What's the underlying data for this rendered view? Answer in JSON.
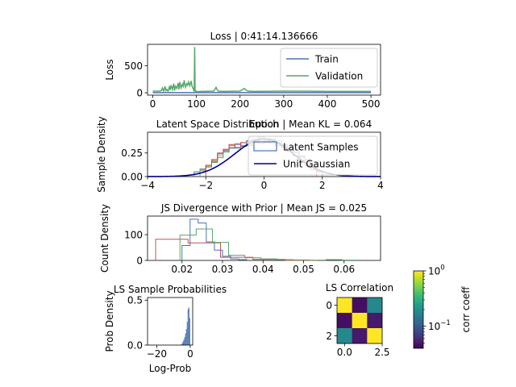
{
  "chart_data": [
    {
      "id": "loss",
      "type": "line",
      "title": "Loss | 0:41:14.136666",
      "xlabel": "Epoch",
      "ylabel": "Loss",
      "xlim": [
        -12,
        522
      ],
      "ylim": [
        -45,
        900
      ],
      "xticks": [
        "0",
        "100",
        "200",
        "300",
        "400",
        "500"
      ],
      "xtick_values": [
        0,
        100,
        200,
        300,
        400,
        500
      ],
      "yticks": [
        "0",
        "500"
      ],
      "ytick_values": [
        0,
        500
      ],
      "legend": {
        "placement": "upper-right"
      },
      "series": [
        {
          "name": "Train",
          "color": "#4c72b0",
          "x": [
            0,
            100,
            200,
            300,
            400,
            500
          ],
          "y": [
            2,
            2,
            2,
            2,
            2,
            2
          ]
        },
        {
          "name": "Validation",
          "color": "#55a868",
          "x": [
            0,
            15,
            20,
            22,
            25,
            28,
            30,
            32,
            35,
            38,
            40,
            42,
            45,
            48,
            50,
            52,
            55,
            58,
            60,
            62,
            65,
            68,
            70,
            72,
            75,
            78,
            80,
            82,
            85,
            88,
            90,
            93,
            94,
            95,
            96,
            97,
            98,
            99,
            100,
            110,
            140,
            145,
            148,
            150,
            160,
            200,
            210,
            215,
            220,
            230,
            300,
            400,
            500
          ],
          "y": [
            30,
            30,
            40,
            90,
            30,
            120,
            40,
            60,
            30,
            110,
            50,
            140,
            60,
            170,
            40,
            120,
            80,
            180,
            60,
            200,
            90,
            160,
            120,
            230,
            100,
            170,
            140,
            200,
            130,
            220,
            120,
            70,
            40,
            60,
            850,
            20,
            40,
            30,
            20,
            25,
            30,
            100,
            50,
            30,
            25,
            30,
            80,
            40,
            30,
            25,
            30,
            25,
            25
          ]
        }
      ]
    },
    {
      "id": "latent",
      "type": "line",
      "title": "Latent Space Distribution | Mean KL = 0.064",
      "xlabel": "",
      "ylabel": "Sample Density",
      "xlim": [
        -4,
        4
      ],
      "ylim": [
        0,
        0.47
      ],
      "xticks": [
        "−4",
        "−2",
        "0",
        "2",
        "4"
      ],
      "xtick_values": [
        -4,
        -2,
        0,
        2,
        4
      ],
      "yticks": [
        "0.00",
        "0.25"
      ],
      "ytick_values": [
        0,
        0.25
      ],
      "legend": {
        "placement": "upper-right"
      },
      "series": [
        {
          "name": "Latent Samples",
          "color": "#4c72b0",
          "type": "step",
          "edges": [
            -2.4,
            -2.2,
            -2.0,
            -1.8,
            -1.6,
            -1.4,
            -1.2,
            -1.0,
            -0.8,
            -0.6,
            -0.4,
            -0.2,
            0.0,
            0.2,
            0.4,
            0.6,
            0.8,
            1.0,
            1.2,
            1.4,
            1.6,
            1.8,
            2.0
          ],
          "values": [
            0.05,
            0.08,
            0.12,
            0.16,
            0.24,
            0.28,
            0.3,
            0.34,
            0.32,
            0.38,
            0.36,
            0.4,
            0.38,
            0.39,
            0.36,
            0.34,
            0.3,
            0.28,
            0.22,
            0.18,
            0.1,
            0.05
          ]
        },
        {
          "name": "",
          "color": "#dd8452",
          "type": "step",
          "edges": [
            -2.2,
            -2.0,
            -1.8,
            -1.6,
            -1.4,
            -1.2,
            -1.0,
            -0.8,
            -0.6,
            -0.4,
            -0.2,
            0.0,
            0.2,
            0.4,
            0.6,
            0.8,
            1.0,
            1.2,
            1.4,
            1.6,
            1.8
          ],
          "values": [
            0.07,
            0.11,
            0.17,
            0.22,
            0.27,
            0.31,
            0.35,
            0.33,
            0.37,
            0.4,
            0.38,
            0.36,
            0.4,
            0.35,
            0.32,
            0.29,
            0.25,
            0.2,
            0.15,
            0.09
          ]
        },
        {
          "name": "",
          "color": "#55a868",
          "type": "step",
          "edges": [
            -2.2,
            -2.0,
            -1.8,
            -1.6,
            -1.4,
            -1.2,
            -1.0,
            -0.8,
            -0.6,
            -0.4,
            -0.2,
            0.0,
            0.2,
            0.4,
            0.6,
            0.8,
            1.0,
            1.2,
            1.4,
            1.6,
            1.8,
            2.0
          ],
          "values": [
            0.06,
            0.1,
            0.15,
            0.2,
            0.26,
            0.33,
            0.3,
            0.36,
            0.34,
            0.39,
            0.42,
            0.37,
            0.35,
            0.38,
            0.33,
            0.3,
            0.26,
            0.21,
            0.16,
            0.11,
            0.06
          ]
        },
        {
          "name": "",
          "color": "#c44e52",
          "type": "step",
          "edges": [
            -2.0,
            -1.8,
            -1.6,
            -1.4,
            -1.2,
            -1.0,
            -0.8,
            -0.6,
            -0.4,
            -0.2,
            0.0,
            0.2,
            0.4,
            0.6,
            0.8,
            1.0,
            1.2,
            1.4,
            1.6,
            1.8
          ],
          "values": [
            0.12,
            0.18,
            0.25,
            0.29,
            0.34,
            0.31,
            0.36,
            0.33,
            0.39,
            0.35,
            0.4,
            0.37,
            0.33,
            0.31,
            0.27,
            0.22,
            0.17,
            0.12,
            0.07
          ]
        },
        {
          "name": "Unit Gaussian",
          "color": "#00008b",
          "type": "gaussian",
          "mean": 0,
          "std": 1
        }
      ]
    },
    {
      "id": "js",
      "type": "line",
      "title": "JS Divergence with Prior | Mean JS = 0.025",
      "xlabel": "",
      "ylabel": "Count Density",
      "xlim": [
        0.0115,
        0.069
      ],
      "ylim": [
        0,
        172
      ],
      "xticks": [
        "0.02",
        "0.03",
        "0.04",
        "0.05",
        "0.06"
      ],
      "xtick_values": [
        0.02,
        0.03,
        0.04,
        0.05,
        0.06
      ],
      "yticks": [
        "0",
        "100"
      ],
      "ytick_values": [
        0,
        100
      ],
      "series": [
        {
          "name": "",
          "color": "#c44e52",
          "type": "step",
          "edges": [
            0.0135,
            0.0215,
            0.0295,
            0.0375,
            0.0455,
            0.0535
          ],
          "values": [
            82,
            68,
            12,
            4,
            0
          ]
        },
        {
          "name": "",
          "color": "#4c72b0",
          "type": "step",
          "edges": [
            0.02,
            0.022,
            0.024,
            0.026,
            0.028,
            0.03,
            0.032,
            0.034,
            0.036
          ],
          "values": [
            58,
            160,
            145,
            72,
            40,
            16,
            6,
            3
          ]
        },
        {
          "name": "",
          "color": "#55a868",
          "type": "step",
          "edges": [
            0.0195,
            0.0235,
            0.0275,
            0.0315,
            0.0355,
            0.0395,
            0.0435,
            0.0475,
            0.0515,
            0.0555,
            0.0595,
            0.0635
          ],
          "values": [
            98,
            122,
            70,
            20,
            10,
            6,
            3,
            2,
            1,
            3,
            1
          ]
        }
      ]
    },
    {
      "id": "logprob",
      "type": "bar",
      "title": "LS Sample Probabilities",
      "xlabel": "Log-Prob",
      "ylabel": "Prob Density",
      "xlim": [
        -25.5,
        1.5
      ],
      "ylim": [
        0,
        0.53
      ],
      "xticks": [
        "−20",
        "0"
      ],
      "xtick_values": [
        -20,
        0
      ],
      "yticks": [
        "0.0",
        "0.5"
      ],
      "ytick_values": [
        0,
        0.5
      ],
      "color": "#4c72b0",
      "edges": [
        -6.0,
        -5.0,
        -4.5,
        -4.0,
        -3.5,
        -3.0,
        -2.5,
        -2.0,
        -1.5,
        -1.0,
        -0.5,
        0.0
      ],
      "values": [
        0.005,
        0.02,
        0.04,
        0.06,
        0.09,
        0.13,
        0.18,
        0.26,
        0.4,
        0.42,
        0.3
      ]
    },
    {
      "id": "corr",
      "type": "heatmap",
      "title": "LS Correlation",
      "xlabel": "",
      "ylabel": "",
      "xticks": [
        "0.0",
        "2.5"
      ],
      "xtick_values": [
        0,
        2.5
      ],
      "yticks": [
        "0",
        "2"
      ],
      "ytick_values": [
        0,
        2
      ],
      "matrix": [
        [
          1.0,
          0.045,
          0.18
        ],
        [
          0.045,
          1.0,
          0.05
        ],
        [
          0.18,
          0.05,
          1.0
        ]
      ],
      "colorbar": {
        "label": "corr coeff",
        "scale": "log",
        "range": [
          0.04,
          1.0
        ],
        "ticks": [
          {
            "label_base": "10",
            "label_exp": "0",
            "value": 1.0
          },
          {
            "label_base": "10",
            "label_exp": "−1",
            "value": 0.1
          }
        ],
        "colormap": [
          "#440154",
          "#482878",
          "#3e4989",
          "#31688e",
          "#26828e",
          "#1f9e89",
          "#35b779",
          "#6ece58",
          "#b5de2b",
          "#fde725"
        ]
      }
    }
  ]
}
